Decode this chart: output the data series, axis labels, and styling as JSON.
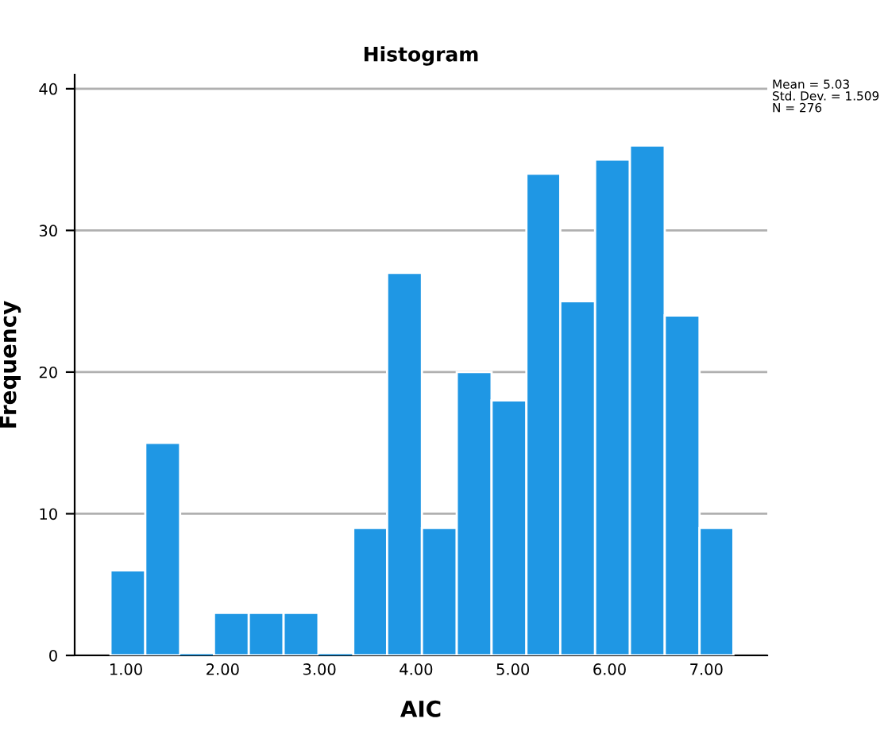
{
  "chart_data": {
    "type": "histogram",
    "title": "Histogram",
    "xlabel": "AIC",
    "ylabel": "Frequency",
    "bins": [
      0.84,
      1.2,
      1.56,
      1.91,
      2.27,
      2.63,
      2.99,
      3.35,
      3.7,
      4.06,
      4.42,
      4.78,
      5.14,
      5.49,
      5.85,
      6.21,
      6.57,
      6.93,
      7.28
    ],
    "values": [
      6,
      15,
      0,
      3,
      3,
      3,
      0,
      9,
      27,
      9,
      20,
      18,
      34,
      25,
      35,
      36,
      24,
      9
    ],
    "color": "#1f97e4",
    "xlim": [
      0.47,
      7.63
    ],
    "ylim": [
      0,
      41
    ],
    "xticks": [
      {
        "value": 1,
        "label": "1.00"
      },
      {
        "value": 2,
        "label": "2.00"
      },
      {
        "value": 3,
        "label": "3.00"
      },
      {
        "value": 4,
        "label": "4.00"
      },
      {
        "value": 5,
        "label": "5.00"
      },
      {
        "value": 6,
        "label": "6.00"
      },
      {
        "value": 7,
        "label": "7.00"
      }
    ],
    "yticks": [
      0,
      10,
      20,
      30,
      40
    ],
    "grid": "y",
    "annotations": [
      "Mean = 5.03\nStd. Dev. = 1.509\nN = 276"
    ]
  }
}
